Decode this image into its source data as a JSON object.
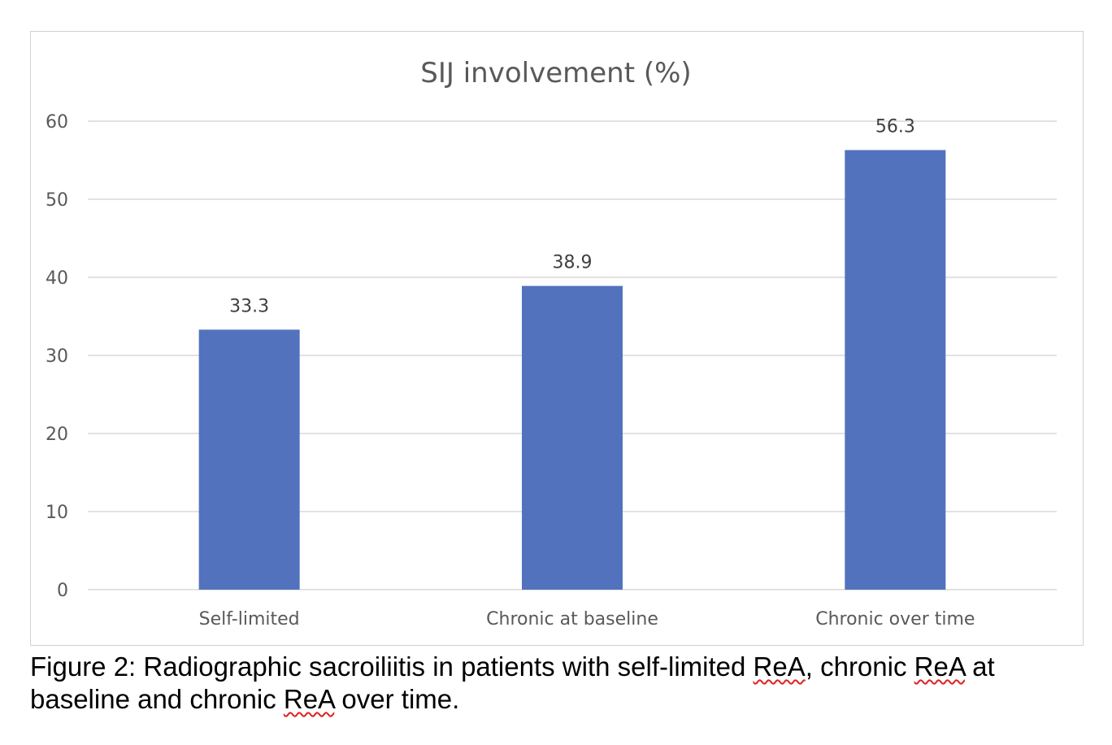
{
  "chart_data": {
    "type": "bar",
    "title": "SIJ involvement (%)",
    "categories": [
      "Self-limited",
      "Chronic at baseline",
      "Chronic over time"
    ],
    "values": [
      33.3,
      38.9,
      56.3
    ],
    "data_labels": [
      "33.3",
      "38.9",
      "56.3"
    ],
    "ylim": [
      0,
      60
    ],
    "yticks": [
      "0",
      "10",
      "20",
      "30",
      "40",
      "50",
      "60"
    ],
    "xlabel": "",
    "ylabel": "",
    "grid": true,
    "legend": "none",
    "bar_color": "#5272BE",
    "grid_color": "#D9D9D9"
  },
  "caption": {
    "parts": [
      "Figure 2: Radiographic sacroiliitis in patients with self-limited ",
      "ReA",
      ", chronic ",
      "ReA",
      " at baseline and chronic ",
      "ReA",
      " over time."
    ]
  }
}
